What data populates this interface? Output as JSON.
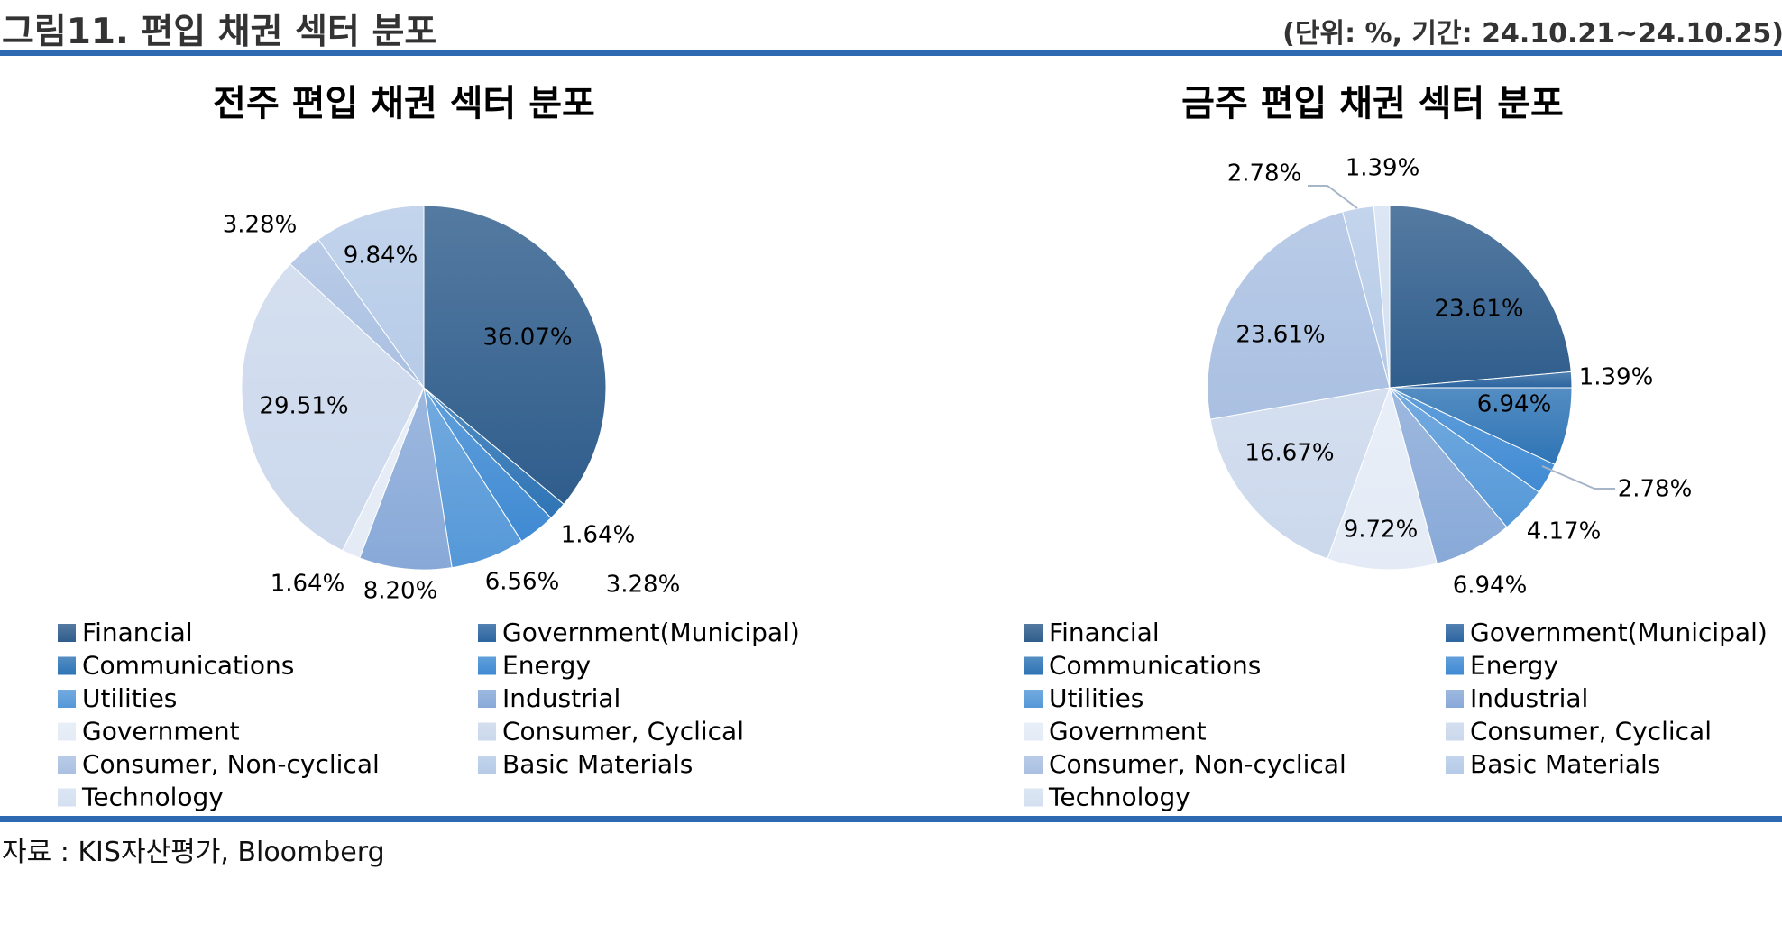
{
  "figure": {
    "title": "그림11. 편입 채권 섹터 분포",
    "note": "(단위: %, 기간: 24.10.21~24.10.25)",
    "source": "자료 : KIS자산평가, Bloomberg"
  },
  "colors": {
    "rule": "#2e6ab2",
    "palette": [
      "#2f5d8c",
      "#2c65a0",
      "#2e74b5",
      "#3f8ad3",
      "#5598d8",
      "#88a9d8",
      "#e4ebf6",
      "#cbd8ec",
      "#aac0e2",
      "#b6cbe8",
      "#d4e0f1"
    ]
  },
  "chart_data": [
    {
      "type": "pie",
      "title": "전주 편입 채권 섹터 분포",
      "categories": [
        "Financial",
        "Government(Municipal)",
        "Communications",
        "Energy",
        "Utilities",
        "Industrial",
        "Government",
        "Consumer, Cyclical",
        "Consumer, Non-cyclical",
        "Basic Materials",
        "Technology"
      ],
      "values": [
        36.07,
        0,
        1.64,
        3.28,
        6.56,
        8.2,
        1.64,
        29.51,
        3.28,
        9.84,
        0
      ],
      "data_labels": [
        "36.07%",
        "",
        "1.64%",
        "3.28%",
        "6.56%",
        "8.20%",
        "1.64%",
        "29.51%",
        "3.28%",
        "9.84%",
        ""
      ],
      "legend": "bottom"
    },
    {
      "type": "pie",
      "title": "금주 편입 채권 섹터 분포",
      "categories": [
        "Financial",
        "Government(Municipal)",
        "Communications",
        "Energy",
        "Utilities",
        "Industrial",
        "Government",
        "Consumer, Cyclical",
        "Consumer, Non-cyclical",
        "Basic Materials",
        "Technology"
      ],
      "values": [
        23.61,
        1.39,
        6.94,
        2.78,
        4.17,
        6.94,
        9.72,
        16.67,
        23.61,
        2.78,
        1.39
      ],
      "data_labels": [
        "23.61%",
        "1.39%",
        "6.94%",
        "2.78%",
        "4.17%",
        "6.94%",
        "9.72%",
        "16.67%",
        "23.61%",
        "2.78%",
        "1.39%"
      ],
      "legend": "bottom"
    }
  ]
}
